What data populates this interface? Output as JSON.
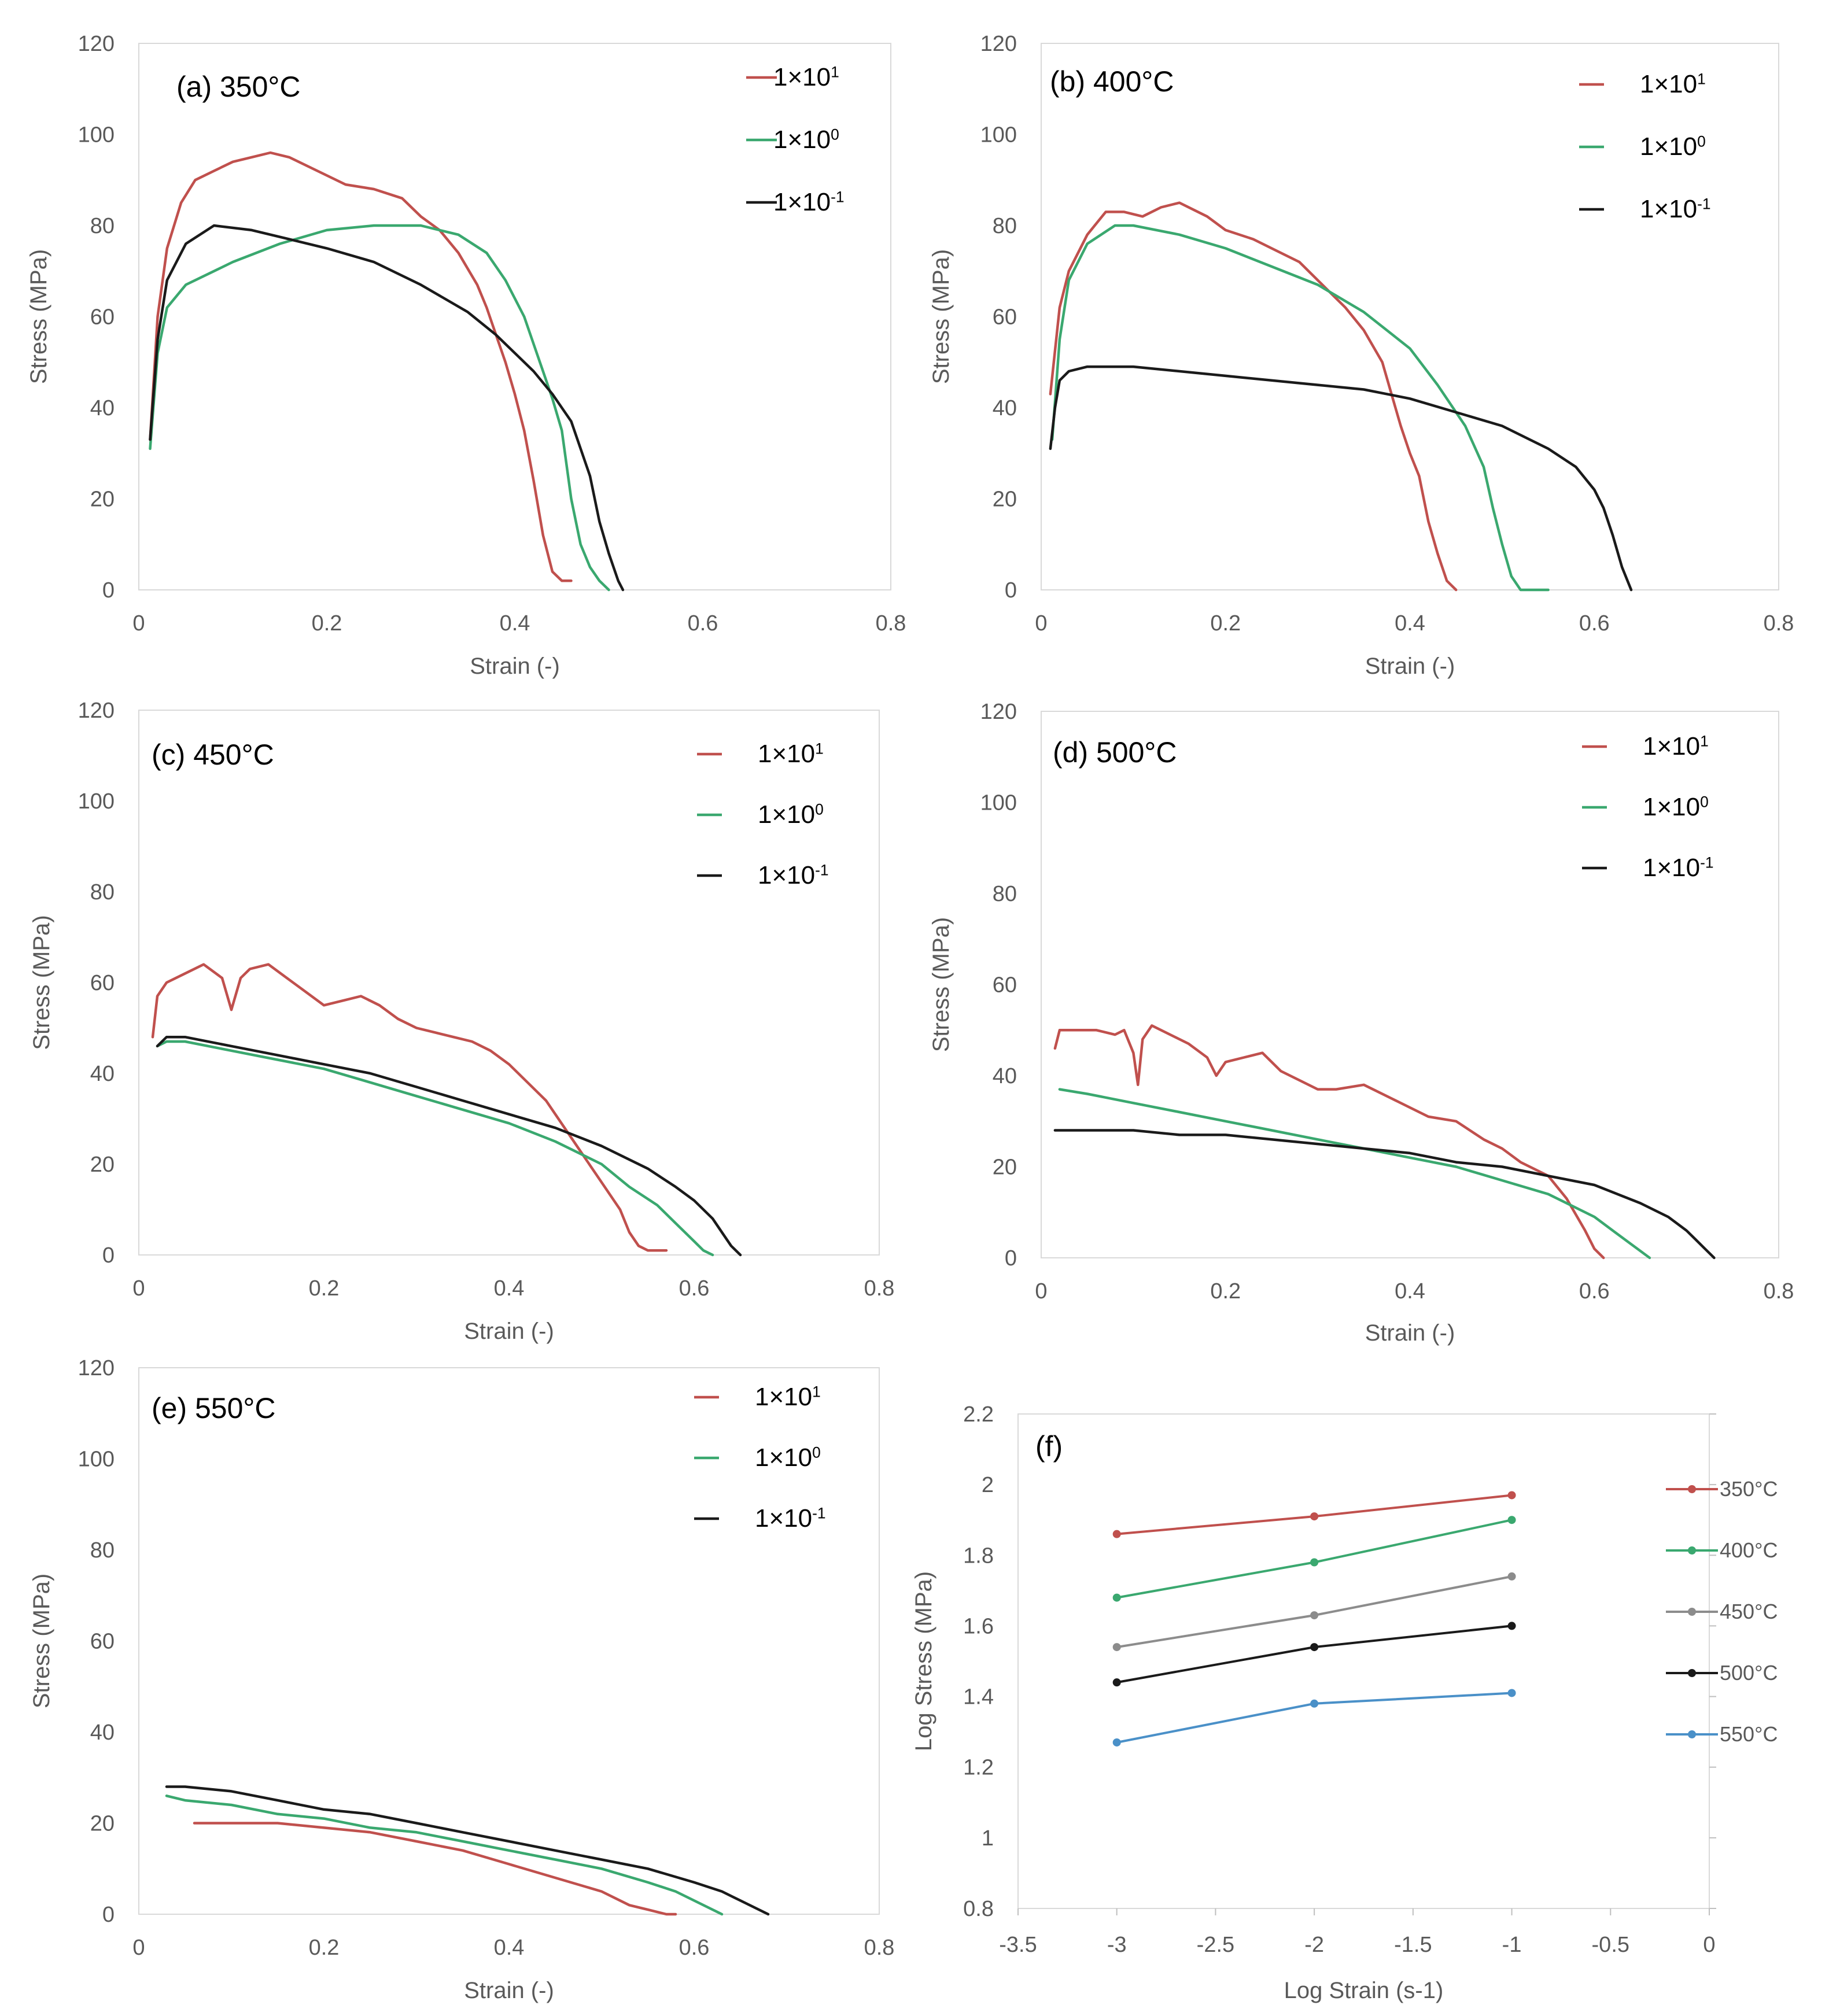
{
  "chart_data": [
    {
      "id": "a",
      "type": "line",
      "title": "(a) 350°C",
      "xlabel": "Strain (-)",
      "ylabel": "Stress (MPa)",
      "xlim": [
        0,
        0.8
      ],
      "ylim": [
        0,
        120
      ],
      "xticks": [
        "0",
        "0.2",
        "0.4",
        "0.6",
        "0.8"
      ],
      "yticks": [
        "0",
        "20",
        "40",
        "60",
        "80",
        "100",
        "120"
      ],
      "legend": {
        "position": "top-right",
        "style": "line-through"
      },
      "series": [
        {
          "name": "1×10¹",
          "color": "#c0504d",
          "x": [
            0.012,
            0.02,
            0.03,
            0.045,
            0.06,
            0.08,
            0.1,
            0.12,
            0.14,
            0.16,
            0.18,
            0.2,
            0.22,
            0.25,
            0.28,
            0.3,
            0.32,
            0.34,
            0.36,
            0.37,
            0.38,
            0.39,
            0.4,
            0.41,
            0.42,
            0.43,
            0.44,
            0.45,
            0.46
          ],
          "y": [
            33,
            60,
            75,
            85,
            90,
            92,
            94,
            95,
            96,
            95,
            93,
            91,
            89,
            88,
            86,
            82,
            79,
            74,
            67,
            62,
            56,
            50,
            43,
            35,
            24,
            12,
            4,
            2,
            2
          ]
        },
        {
          "name": "1×10⁰",
          "color": "#3aa86f",
          "x": [
            0.012,
            0.02,
            0.03,
            0.05,
            0.08,
            0.1,
            0.15,
            0.2,
            0.25,
            0.3,
            0.34,
            0.37,
            0.39,
            0.41,
            0.42,
            0.43,
            0.44,
            0.45,
            0.46,
            0.47,
            0.48,
            0.49,
            0.5
          ],
          "y": [
            31,
            52,
            62,
            67,
            70,
            72,
            76,
            79,
            80,
            80,
            78,
            74,
            68,
            60,
            54,
            48,
            42,
            35,
            20,
            10,
            5,
            2,
            0
          ]
        },
        {
          "name": "1×10⁻¹",
          "color": "#1a1a1a",
          "x": [
            0.012,
            0.02,
            0.03,
            0.05,
            0.08,
            0.12,
            0.16,
            0.2,
            0.25,
            0.3,
            0.35,
            0.38,
            0.4,
            0.42,
            0.44,
            0.46,
            0.48,
            0.49,
            0.5,
            0.51,
            0.515
          ],
          "y": [
            33,
            55,
            68,
            76,
            80,
            79,
            77,
            75,
            72,
            67,
            61,
            56,
            52,
            48,
            43,
            37,
            25,
            15,
            8,
            2,
            0
          ]
        }
      ]
    },
    {
      "id": "b",
      "type": "line",
      "title": "(b) 400°C",
      "xlabel": "Strain (-)",
      "ylabel": "Stress (MPa)",
      "xlim": [
        0,
        0.8
      ],
      "ylim": [
        0,
        120
      ],
      "xticks": [
        "0",
        "0.2",
        "0.4",
        "0.6",
        "0.8"
      ],
      "yticks": [
        "0",
        "20",
        "40",
        "60",
        "80",
        "100",
        "120"
      ],
      "legend": {
        "position": "top-right",
        "style": "line-left"
      },
      "series": [
        {
          "name": "1×10¹",
          "color": "#c0504d",
          "x": [
            0.01,
            0.02,
            0.03,
            0.05,
            0.07,
            0.09,
            0.11,
            0.13,
            0.15,
            0.18,
            0.2,
            0.23,
            0.25,
            0.28,
            0.3,
            0.33,
            0.35,
            0.37,
            0.38,
            0.39,
            0.4,
            0.41,
            0.42,
            0.43,
            0.44,
            0.45
          ],
          "y": [
            43,
            62,
            70,
            78,
            83,
            83,
            82,
            84,
            85,
            82,
            79,
            77,
            75,
            72,
            68,
            62,
            57,
            50,
            43,
            36,
            30,
            25,
            15,
            8,
            2,
            0
          ]
        },
        {
          "name": "1×10⁰",
          "color": "#3aa86f",
          "x": [
            0.012,
            0.02,
            0.03,
            0.05,
            0.08,
            0.1,
            0.15,
            0.2,
            0.25,
            0.3,
            0.35,
            0.4,
            0.43,
            0.46,
            0.48,
            0.49,
            0.5,
            0.51,
            0.52,
            0.53,
            0.55
          ],
          "y": [
            33,
            55,
            68,
            76,
            80,
            80,
            78,
            75,
            71,
            67,
            61,
            53,
            45,
            36,
            27,
            18,
            10,
            3,
            0,
            0,
            0
          ]
        },
        {
          "name": "1×10⁻¹",
          "color": "#1a1a1a",
          "x": [
            0.01,
            0.015,
            0.02,
            0.03,
            0.05,
            0.1,
            0.2,
            0.3,
            0.35,
            0.4,
            0.45,
            0.5,
            0.55,
            0.58,
            0.6,
            0.61,
            0.62,
            0.63,
            0.64
          ],
          "y": [
            31,
            40,
            46,
            48,
            49,
            49,
            47,
            45,
            44,
            42,
            39,
            36,
            31,
            27,
            22,
            18,
            12,
            5,
            0
          ]
        }
      ]
    },
    {
      "id": "c",
      "type": "line",
      "title": "(c) 450°C",
      "xlabel": "Strain (-)",
      "ylabel": "Stress (MPa)",
      "xlim": [
        0,
        0.8
      ],
      "ylim": [
        0,
        120
      ],
      "xticks": [
        "0",
        "0.2",
        "0.4",
        "0.6",
        "0.8"
      ],
      "yticks": [
        "0",
        "20",
        "40",
        "60",
        "80",
        "100",
        "120"
      ],
      "legend": {
        "position": "top-right",
        "style": "line-left"
      },
      "series": [
        {
          "name": "1×10¹",
          "color": "#c0504d",
          "x": [
            0.015,
            0.02,
            0.03,
            0.05,
            0.07,
            0.09,
            0.1,
            0.11,
            0.12,
            0.14,
            0.16,
            0.18,
            0.2,
            0.22,
            0.24,
            0.26,
            0.28,
            0.3,
            0.32,
            0.34,
            0.36,
            0.38,
            0.4,
            0.42,
            0.44,
            0.46,
            0.48,
            0.5,
            0.52,
            0.53,
            0.54,
            0.55,
            0.57
          ],
          "y": [
            48,
            57,
            60,
            62,
            64,
            61,
            54,
            61,
            63,
            64,
            61,
            58,
            55,
            56,
            57,
            55,
            52,
            50,
            49,
            48,
            47,
            45,
            42,
            38,
            34,
            28,
            22,
            16,
            10,
            5,
            2,
            1,
            1
          ]
        },
        {
          "name": "1×10⁰",
          "color": "#3aa86f",
          "x": [
            0.02,
            0.03,
            0.05,
            0.1,
            0.15,
            0.2,
            0.25,
            0.3,
            0.35,
            0.4,
            0.45,
            0.5,
            0.53,
            0.56,
            0.58,
            0.6,
            0.61,
            0.62
          ],
          "y": [
            46,
            47,
            47,
            45,
            43,
            41,
            38,
            35,
            32,
            29,
            25,
            20,
            15,
            11,
            7,
            3,
            1,
            0
          ]
        },
        {
          "name": "1×10⁻¹",
          "color": "#1a1a1a",
          "x": [
            0.02,
            0.03,
            0.05,
            0.1,
            0.15,
            0.2,
            0.25,
            0.3,
            0.35,
            0.4,
            0.45,
            0.5,
            0.55,
            0.58,
            0.6,
            0.62,
            0.63,
            0.64,
            0.65
          ],
          "y": [
            46,
            48,
            48,
            46,
            44,
            42,
            40,
            37,
            34,
            31,
            28,
            24,
            19,
            15,
            12,
            8,
            5,
            2,
            0
          ]
        }
      ]
    },
    {
      "id": "d",
      "type": "line",
      "title": "(d) 500°C",
      "xlabel": "Strain (-)",
      "ylabel": "Stress (MPa)",
      "xlim": [
        0,
        0.8
      ],
      "ylim": [
        0,
        120
      ],
      "xticks": [
        "0",
        "0.2",
        "0.4",
        "0.6",
        "0.8"
      ],
      "yticks": [
        "0",
        "20",
        "40",
        "60",
        "80",
        "100",
        "120"
      ],
      "legend": {
        "position": "top-right",
        "style": "line-left"
      },
      "series": [
        {
          "name": "1×10¹",
          "color": "#c0504d",
          "x": [
            0.015,
            0.02,
            0.04,
            0.06,
            0.08,
            0.09,
            0.1,
            0.105,
            0.11,
            0.12,
            0.14,
            0.16,
            0.18,
            0.19,
            0.2,
            0.22,
            0.24,
            0.26,
            0.28,
            0.3,
            0.32,
            0.35,
            0.38,
            0.4,
            0.42,
            0.45,
            0.48,
            0.5,
            0.52,
            0.55,
            0.57,
            0.59,
            0.6,
            0.61
          ],
          "y": [
            46,
            50,
            50,
            50,
            49,
            50,
            45,
            38,
            48,
            51,
            49,
            47,
            44,
            40,
            43,
            44,
            45,
            41,
            39,
            37,
            37,
            38,
            35,
            33,
            31,
            30,
            26,
            24,
            21,
            18,
            13,
            6,
            2,
            0
          ]
        },
        {
          "name": "1×10⁰",
          "color": "#3aa86f",
          "x": [
            0.02,
            0.05,
            0.1,
            0.15,
            0.2,
            0.25,
            0.3,
            0.35,
            0.4,
            0.45,
            0.5,
            0.55,
            0.58,
            0.6,
            0.62,
            0.64,
            0.66
          ],
          "y": [
            37,
            36,
            34,
            32,
            30,
            28,
            26,
            24,
            22,
            20,
            17,
            14,
            11,
            9,
            6,
            3,
            0
          ]
        },
        {
          "name": "1×10⁻¹",
          "color": "#1a1a1a",
          "x": [
            0.015,
            0.05,
            0.1,
            0.15,
            0.2,
            0.25,
            0.3,
            0.35,
            0.4,
            0.45,
            0.5,
            0.55,
            0.6,
            0.65,
            0.68,
            0.7,
            0.71,
            0.72,
            0.73
          ],
          "y": [
            28,
            28,
            28,
            27,
            27,
            26,
            25,
            24,
            23,
            21,
            20,
            18,
            16,
            12,
            9,
            6,
            4,
            2,
            0
          ]
        }
      ]
    },
    {
      "id": "e",
      "type": "line",
      "title": "(e) 550°C",
      "xlabel": "Strain (-)",
      "ylabel": "Stress (MPa)",
      "xlim": [
        0,
        0.8
      ],
      "ylim": [
        0,
        120
      ],
      "xticks": [
        "0",
        "0.2",
        "0.4",
        "0.6",
        "0.8"
      ],
      "yticks": [
        "0",
        "20",
        "40",
        "60",
        "80",
        "100",
        "120"
      ],
      "legend": {
        "position": "top-right",
        "style": "line-left"
      },
      "series": [
        {
          "name": "1×10¹",
          "color": "#c0504d",
          "x": [
            0.06,
            0.1,
            0.15,
            0.2,
            0.25,
            0.3,
            0.35,
            0.4,
            0.45,
            0.5,
            0.53,
            0.55,
            0.57,
            0.58
          ],
          "y": [
            20,
            20,
            20,
            19,
            18,
            16,
            14,
            11,
            8,
            5,
            2,
            1,
            0,
            0
          ]
        },
        {
          "name": "1×10⁰",
          "color": "#3aa86f",
          "x": [
            0.03,
            0.05,
            0.1,
            0.15,
            0.2,
            0.25,
            0.3,
            0.35,
            0.4,
            0.45,
            0.5,
            0.55,
            0.58,
            0.6,
            0.62,
            0.63
          ],
          "y": [
            26,
            25,
            24,
            22,
            21,
            19,
            18,
            16,
            14,
            12,
            10,
            7,
            5,
            3,
            1,
            0
          ]
        },
        {
          "name": "1×10⁻¹",
          "color": "#1a1a1a",
          "x": [
            0.03,
            0.05,
            0.1,
            0.15,
            0.2,
            0.25,
            0.3,
            0.35,
            0.4,
            0.45,
            0.5,
            0.55,
            0.6,
            0.63,
            0.65,
            0.67,
            0.68
          ],
          "y": [
            28,
            28,
            27,
            25,
            23,
            22,
            20,
            18,
            16,
            14,
            12,
            10,
            7,
            5,
            3,
            1,
            0
          ]
        }
      ]
    },
    {
      "id": "f",
      "type": "line",
      "title": "(f)",
      "xlabel": "Log Strain (s-1)",
      "ylabel": "Log Stress (MPa)",
      "xlim": [
        -3.5,
        0
      ],
      "ylim": [
        0.8,
        2.2
      ],
      "xticks": [
        "-3.5",
        "-3",
        "-2.5",
        "-2",
        "-1.5",
        "-1",
        "-0.5",
        "0"
      ],
      "yticks": [
        "0.8",
        "1",
        "1.2",
        "1.4",
        "1.6",
        "1.8",
        "2",
        "2.2"
      ],
      "legend": {
        "position": "right",
        "style": "line-marker"
      },
      "series": [
        {
          "name": "350°C",
          "color": "#c0504d",
          "x": [
            -3,
            -2,
            -1
          ],
          "y": [
            1.86,
            1.91,
            1.97
          ]
        },
        {
          "name": "400°C",
          "color": "#3aa86f",
          "x": [
            -3,
            -2,
            -1
          ],
          "y": [
            1.68,
            1.78,
            1.9
          ]
        },
        {
          "name": "450°C",
          "color": "#8c8c8c",
          "x": [
            -3,
            -2,
            -1
          ],
          "y": [
            1.54,
            1.63,
            1.74
          ]
        },
        {
          "name": "500°C",
          "color": "#1a1a1a",
          "x": [
            -3,
            -2,
            -1
          ],
          "y": [
            1.44,
            1.54,
            1.6
          ]
        },
        {
          "name": "550°C",
          "color": "#4a90c8",
          "x": [
            -3,
            -2,
            -1
          ],
          "y": [
            1.27,
            1.38,
            1.41
          ]
        }
      ]
    }
  ]
}
